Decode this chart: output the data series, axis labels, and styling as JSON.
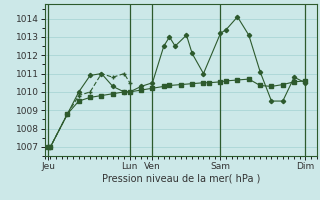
{
  "xlabel": "Pression niveau de la mer( hPa )",
  "bg_color": "#cce8e8",
  "grid_color": "#99cccc",
  "line_color": "#2d5a2d",
  "vline_color": "#2d5a2d",
  "ylim": [
    1006.5,
    1014.8
  ],
  "xlim": [
    0,
    24
  ],
  "yticks": [
    1007,
    1008,
    1009,
    1010,
    1011,
    1012,
    1013,
    1014
  ],
  "xtick_labels": [
    "Jeu",
    "Lun",
    "Ven",
    "Sam",
    "Dim"
  ],
  "xtick_positions": [
    0.3,
    7.5,
    9.5,
    15.5,
    23.0
  ],
  "vline_positions": [
    0.3,
    7.5,
    9.5,
    15.5,
    23.0
  ],
  "series1_x": [
    0.3,
    0.5,
    2.0,
    3.0,
    4.0,
    5.0,
    6.0,
    7.0,
    7.5,
    8.5,
    9.5,
    10.5,
    11.0,
    12.0,
    13.0,
    14.0,
    14.5,
    15.5,
    16.0,
    17.0,
    18.0,
    19.0,
    20.0,
    21.0,
    22.0,
    23.0
  ],
  "series1_y": [
    1007.0,
    1007.0,
    1008.8,
    1009.5,
    1009.7,
    1009.8,
    1009.9,
    1010.0,
    1010.0,
    1010.1,
    1010.2,
    1010.3,
    1010.35,
    1010.4,
    1010.45,
    1010.5,
    1010.5,
    1010.55,
    1010.6,
    1010.65,
    1010.7,
    1010.35,
    1010.3,
    1010.4,
    1010.55,
    1010.6
  ],
  "series2_x": [
    0.3,
    0.5,
    2.0,
    3.0,
    4.0,
    5.0,
    6.0,
    7.0,
    7.5,
    8.5,
    9.5,
    10.5,
    11.0,
    11.5,
    12.5,
    13.0,
    14.0,
    15.5,
    16.0,
    17.0,
    18.0,
    19.0,
    20.0,
    21.0,
    22.0,
    23.0
  ],
  "series2_y": [
    1007.0,
    1007.0,
    1008.8,
    1010.0,
    1010.9,
    1011.0,
    1010.3,
    1010.0,
    1010.0,
    1010.3,
    1010.5,
    1012.5,
    1013.0,
    1012.5,
    1013.1,
    1012.1,
    1011.0,
    1013.2,
    1013.4,
    1014.1,
    1013.1,
    1011.1,
    1009.5,
    1009.5,
    1010.8,
    1010.5
  ],
  "series3_x": [
    0.3,
    0.5,
    2.0,
    3.0,
    4.0,
    5.0,
    6.0,
    7.0,
    7.5
  ],
  "series3_y": [
    1007.0,
    1007.0,
    1008.8,
    1009.8,
    1010.0,
    1011.0,
    1010.8,
    1011.0,
    1010.5
  ],
  "ylabel_fontsize": 6.5,
  "xlabel_fontsize": 7.0,
  "tick_fontsize": 6.5
}
